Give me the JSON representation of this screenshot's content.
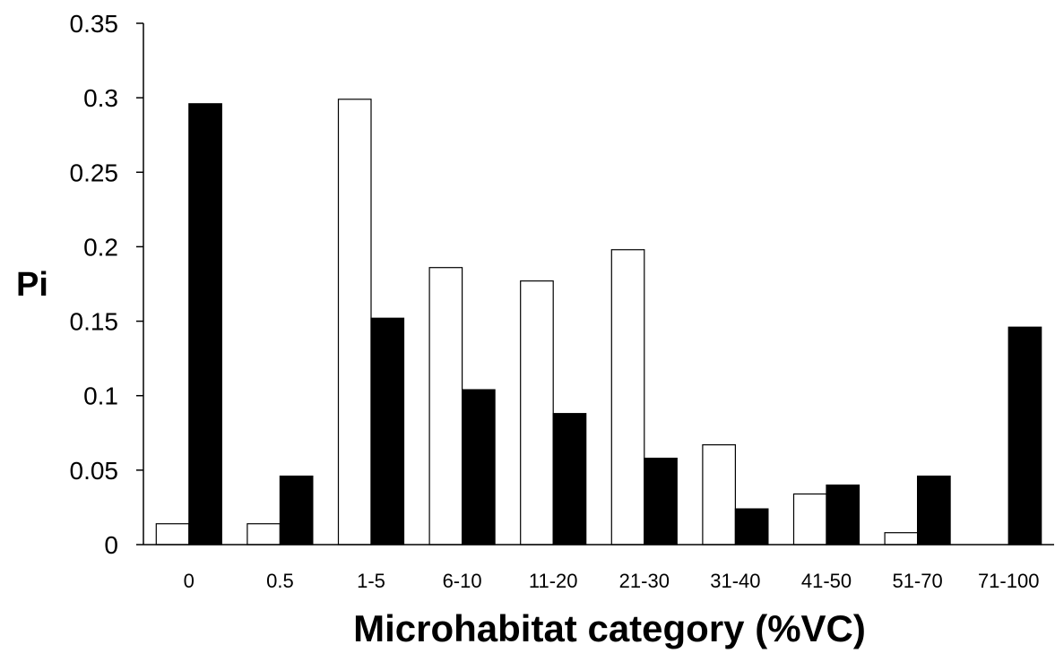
{
  "chart_data": {
    "type": "bar",
    "title": "",
    "xlabel": "Microhabitat category (%VC)",
    "ylabel": "Pi",
    "ylim": [
      0,
      0.35
    ],
    "yticks": [
      0,
      0.05,
      0.1,
      0.15,
      0.2,
      0.25,
      0.3,
      0.35
    ],
    "ytick_labels": [
      "0",
      "0.05",
      "0.1",
      "0.15",
      "0.2",
      "0.25",
      "0.3",
      "0.35"
    ],
    "categories": [
      "0",
      "0.5",
      "1-5",
      "6-10",
      "11-20",
      "21-30",
      "31-40",
      "41-50",
      "51-70",
      "71-100"
    ],
    "grid": false,
    "legend": "none",
    "series": [
      {
        "fill": "#ffffff",
        "stroke": "#000000",
        "values": [
          0.014,
          0.014,
          0.299,
          0.186,
          0.177,
          0.198,
          0.067,
          0.034,
          0.008,
          0.0
        ]
      },
      {
        "fill": "#000000",
        "stroke": "#000000",
        "values": [
          0.296,
          0.046,
          0.152,
          0.104,
          0.088,
          0.058,
          0.024,
          0.04,
          0.046,
          0.146
        ]
      }
    ]
  }
}
